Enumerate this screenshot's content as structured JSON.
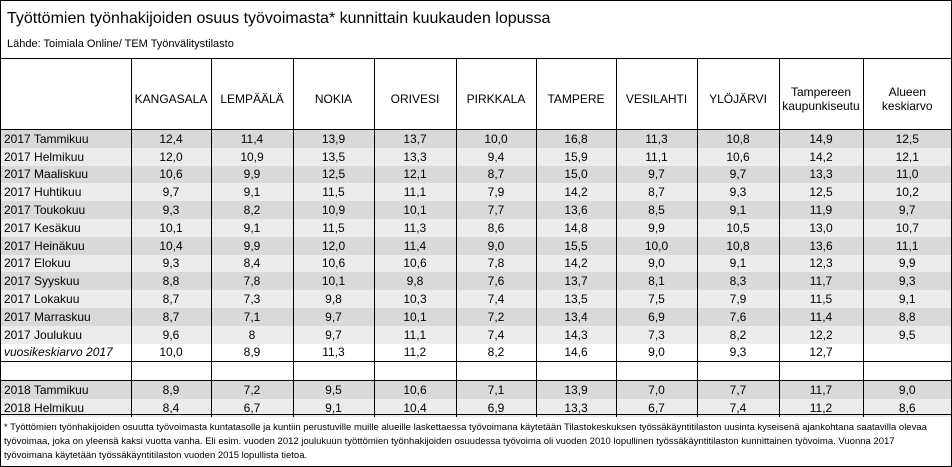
{
  "header": {
    "title": "Työttömien työnhakijoiden osuus työvoimasta* kunnittain kuukauden lopussa",
    "source": "Lähde: Toimiala Online/ TEM Työnvälitystilasto"
  },
  "table": {
    "columns": [
      "KANGASALA",
      "LEMPÄÄLÄ",
      "NOKIA",
      "ORIVESI",
      "PIRKKALA",
      "TAMPERE",
      "VESILAHTI",
      "YLÖJÄRVI",
      "Tampereen kaupunkiseutu",
      "Alueen keskiarvo"
    ],
    "rows": [
      [
        "2017 Tammikuu",
        "12,4",
        "11,4",
        "13,9",
        "13,7",
        "10,0",
        "16,8",
        "11,3",
        "10,8",
        "14,9",
        "12,5"
      ],
      [
        "2017 Helmikuu",
        "12,0",
        "10,9",
        "13,5",
        "13,3",
        "9,4",
        "15,9",
        "11,1",
        "10,6",
        "14,2",
        "12,1"
      ],
      [
        "2017 Maaliskuu",
        "10,6",
        "9,9",
        "12,5",
        "12,1",
        "8,7",
        "15,0",
        "9,7",
        "9,7",
        "13,3",
        "11,0"
      ],
      [
        "2017 Huhtikuu",
        "9,7",
        "9,1",
        "11,5",
        "11,1",
        "7,9",
        "14,2",
        "8,7",
        "9,3",
        "12,5",
        "10,2"
      ],
      [
        "2017 Toukokuu",
        "9,3",
        "8,2",
        "10,9",
        "10,1",
        "7,7",
        "13,6",
        "8,5",
        "9,1",
        "11,9",
        "9,7"
      ],
      [
        "2017 Kesäkuu",
        "10,1",
        "9,1",
        "11,5",
        "11,3",
        "8,6",
        "14,8",
        "9,9",
        "10,5",
        "13,0",
        "10,7"
      ],
      [
        "2017 Heinäkuu",
        "10,4",
        "9,9",
        "12,0",
        "11,4",
        "9,0",
        "15,5",
        "10,0",
        "10,8",
        "13,6",
        "11,1"
      ],
      [
        "2017 Elokuu",
        "9,3",
        "8,4",
        "10,6",
        "10,6",
        "7,8",
        "14,2",
        "9,0",
        "9,1",
        "12,3",
        "9,9"
      ],
      [
        "2017 Syyskuu",
        "8,8",
        "7,8",
        "10,1",
        "9,8",
        "7,6",
        "13,7",
        "8,1",
        "8,3",
        "11,7",
        "9,3"
      ],
      [
        "2017 Lokakuu",
        "8,7",
        "7,3",
        "9,8",
        "10,3",
        "7,4",
        "13,5",
        "7,5",
        "7,9",
        "11,5",
        "9,1"
      ],
      [
        "2017 Marraskuu",
        "8,7",
        "7,1",
        "9,7",
        "10,1",
        "7,2",
        "13,4",
        "6,9",
        "7,6",
        "11,4",
        "8,8"
      ],
      [
        "2017 Joulukuu",
        "9,6",
        "8",
        "9,7",
        "11,1",
        "7,4",
        "14,3",
        "7,3",
        "8,2",
        "12,2",
        "9,5"
      ],
      [
        "vuosikeskiarvo 2017",
        "10,0",
        "8,9",
        "11,3",
        "11,2",
        "8,2",
        "14,6",
        "9,0",
        "9,3",
        "12,7",
        null
      ],
      null,
      [
        "2018 Tammikuu",
        "8,9",
        "7,2",
        "9,5",
        "10,6",
        "7,1",
        "13,9",
        "7,0",
        "7,7",
        "11,7",
        "9,0"
      ],
      [
        "2018 Helmikuu",
        "8,4",
        "6,7",
        "9,1",
        "10,4",
        "6,9",
        "13,3",
        "6,7",
        "7,4",
        "11,2",
        "8,6"
      ]
    ]
  },
  "footnote": "* Työttömien työnhakijoiden osuutta työvoimasta kuntatasolle ja kuntiin perustuville muille alueille laskettaessa työvoimana käytetään Tilastokeskuksen työssäkäyntitilaston uusinta kyseisenä ajankohtana saatavilla olevaa työvoimaa, joka on yleensä kaksi vuotta vanha. Eli esim. vuoden 2012 joulukuun työttömien työnhakijoiden osuudessa työvoima oli vuoden 2010 lopullinen työssäkäyntitilaston kunnittainen työvoima. Vuonna 2017 työvoimana käytetään työssäkäyntitilaston vuoden 2015 lopullista tietoa."
}
